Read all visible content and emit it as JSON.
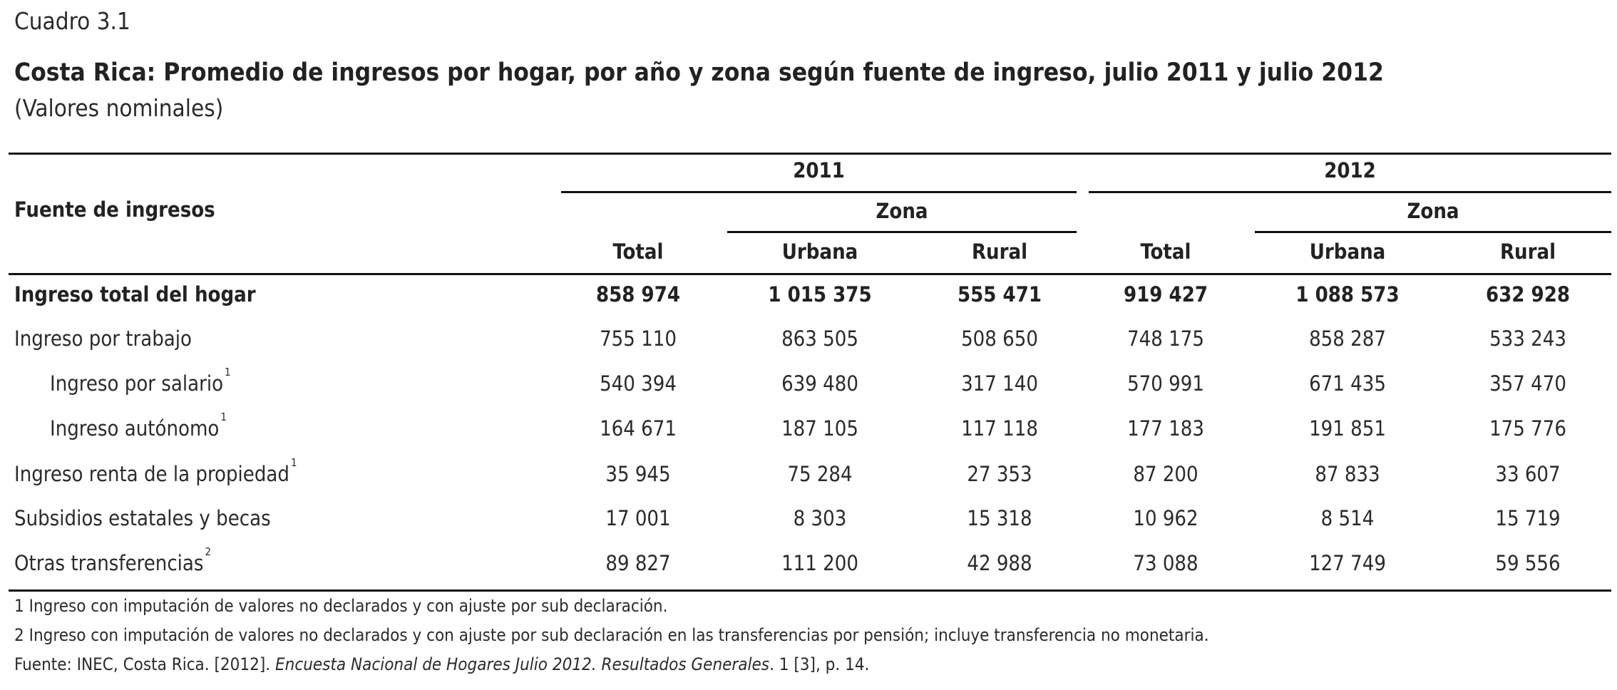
{
  "caption": "Cuadro 3.1",
  "title": "Costa Rica: Promedio de ingresos por hogar, por año y zona según fuente de ingreso, julio 2011 y julio 2012",
  "subtitle": "(Valores nominales)",
  "table": {
    "row_header": "Fuente de ingresos",
    "years": [
      "2011",
      "2012"
    ],
    "zona_label": "Zona",
    "columns": [
      "Total",
      "Urbana",
      "Rural",
      "Total",
      "Urbana",
      "Rural"
    ],
    "rows": [
      {
        "label": "Ingreso total del hogar",
        "note": "",
        "values": [
          "858 974",
          "1 015 375",
          "555 471",
          "919 427",
          "1 088 573",
          "632 928"
        ]
      },
      {
        "label": "Ingreso por trabajo",
        "note": "",
        "values": [
          "755 110",
          "863 505",
          "508 650",
          "748 175",
          "858 287",
          "533 243"
        ]
      },
      {
        "label": "Ingreso por salario",
        "note": "1",
        "values": [
          "540 394",
          "639 480",
          "317 140",
          "570 991",
          "671 435",
          "357 470"
        ]
      },
      {
        "label": "Ingreso autónomo",
        "note": "1",
        "values": [
          "164 671",
          "187 105",
          "117 118",
          "177 183",
          "191 851",
          "175 776"
        ]
      },
      {
        "label": "Ingreso renta de la propiedad",
        "note": "1",
        "values": [
          "35 945",
          "75 284",
          "27 353",
          "87 200",
          "87 833",
          "33 607"
        ]
      },
      {
        "label": "Subsidios estatales y becas",
        "note": "",
        "values": [
          "17 001",
          "8 303",
          "15 318",
          "10 962",
          "8 514",
          "15 719"
        ]
      },
      {
        "label": "Otras transferencias",
        "note": "2",
        "values": [
          "89 827",
          "111 200",
          "42 988",
          "73 088",
          "127 749",
          "59 556"
        ]
      }
    ]
  },
  "footnotes": {
    "note1": "1 Ingreso con imputación de valores no declarados y con ajuste por sub declaración.",
    "note2": "2 Ingreso con imputación de valores no declarados y con ajuste por sub declaración en las transferencias por pensión; incluye transferencia no monetaria.",
    "source_prefix": "Fuente: INEC, Costa Rica. [2012]. ",
    "source_title": "Encuesta Nacional de Hogares Julio 2012. Resultados Generales",
    "source_suffix": ". 1 [3], p. 14."
  }
}
